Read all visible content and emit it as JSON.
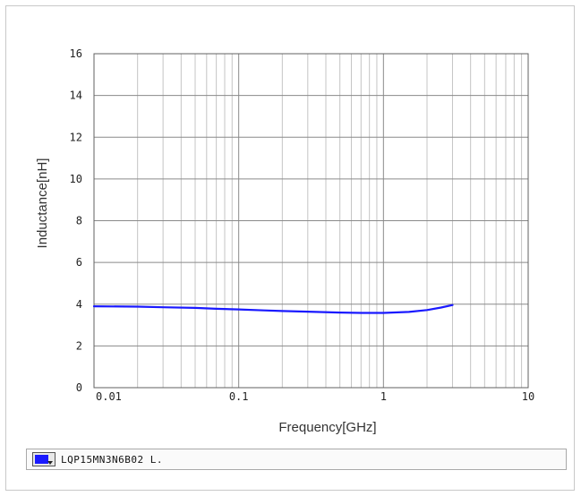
{
  "chart_data": {
    "type": "line",
    "xscale": "log",
    "xlim": [
      0.01,
      10
    ],
    "ylim": [
      0,
      16
    ],
    "x_ticks": [
      "0.01",
      "0.1",
      "1",
      "10"
    ],
    "y_ticks": [
      "0",
      "2",
      "4",
      "6",
      "8",
      "10",
      "12",
      "14",
      "16"
    ],
    "xlabel": "Frequency[GHz]",
    "ylabel": "Inductance[nH]",
    "grid": true,
    "legend_position": "bottom",
    "series": [
      {
        "name": "LQP15MN3N6B02 L.",
        "color": "#1a1aff",
        "x": [
          0.01,
          0.02,
          0.03,
          0.05,
          0.07,
          0.1,
          0.15,
          0.2,
          0.3,
          0.5,
          0.7,
          1.0,
          1.5,
          2.0,
          2.5,
          3.0
        ],
        "y": [
          3.9,
          3.88,
          3.85,
          3.82,
          3.78,
          3.75,
          3.7,
          3.67,
          3.64,
          3.6,
          3.58,
          3.58,
          3.63,
          3.72,
          3.84,
          3.96
        ]
      }
    ]
  }
}
